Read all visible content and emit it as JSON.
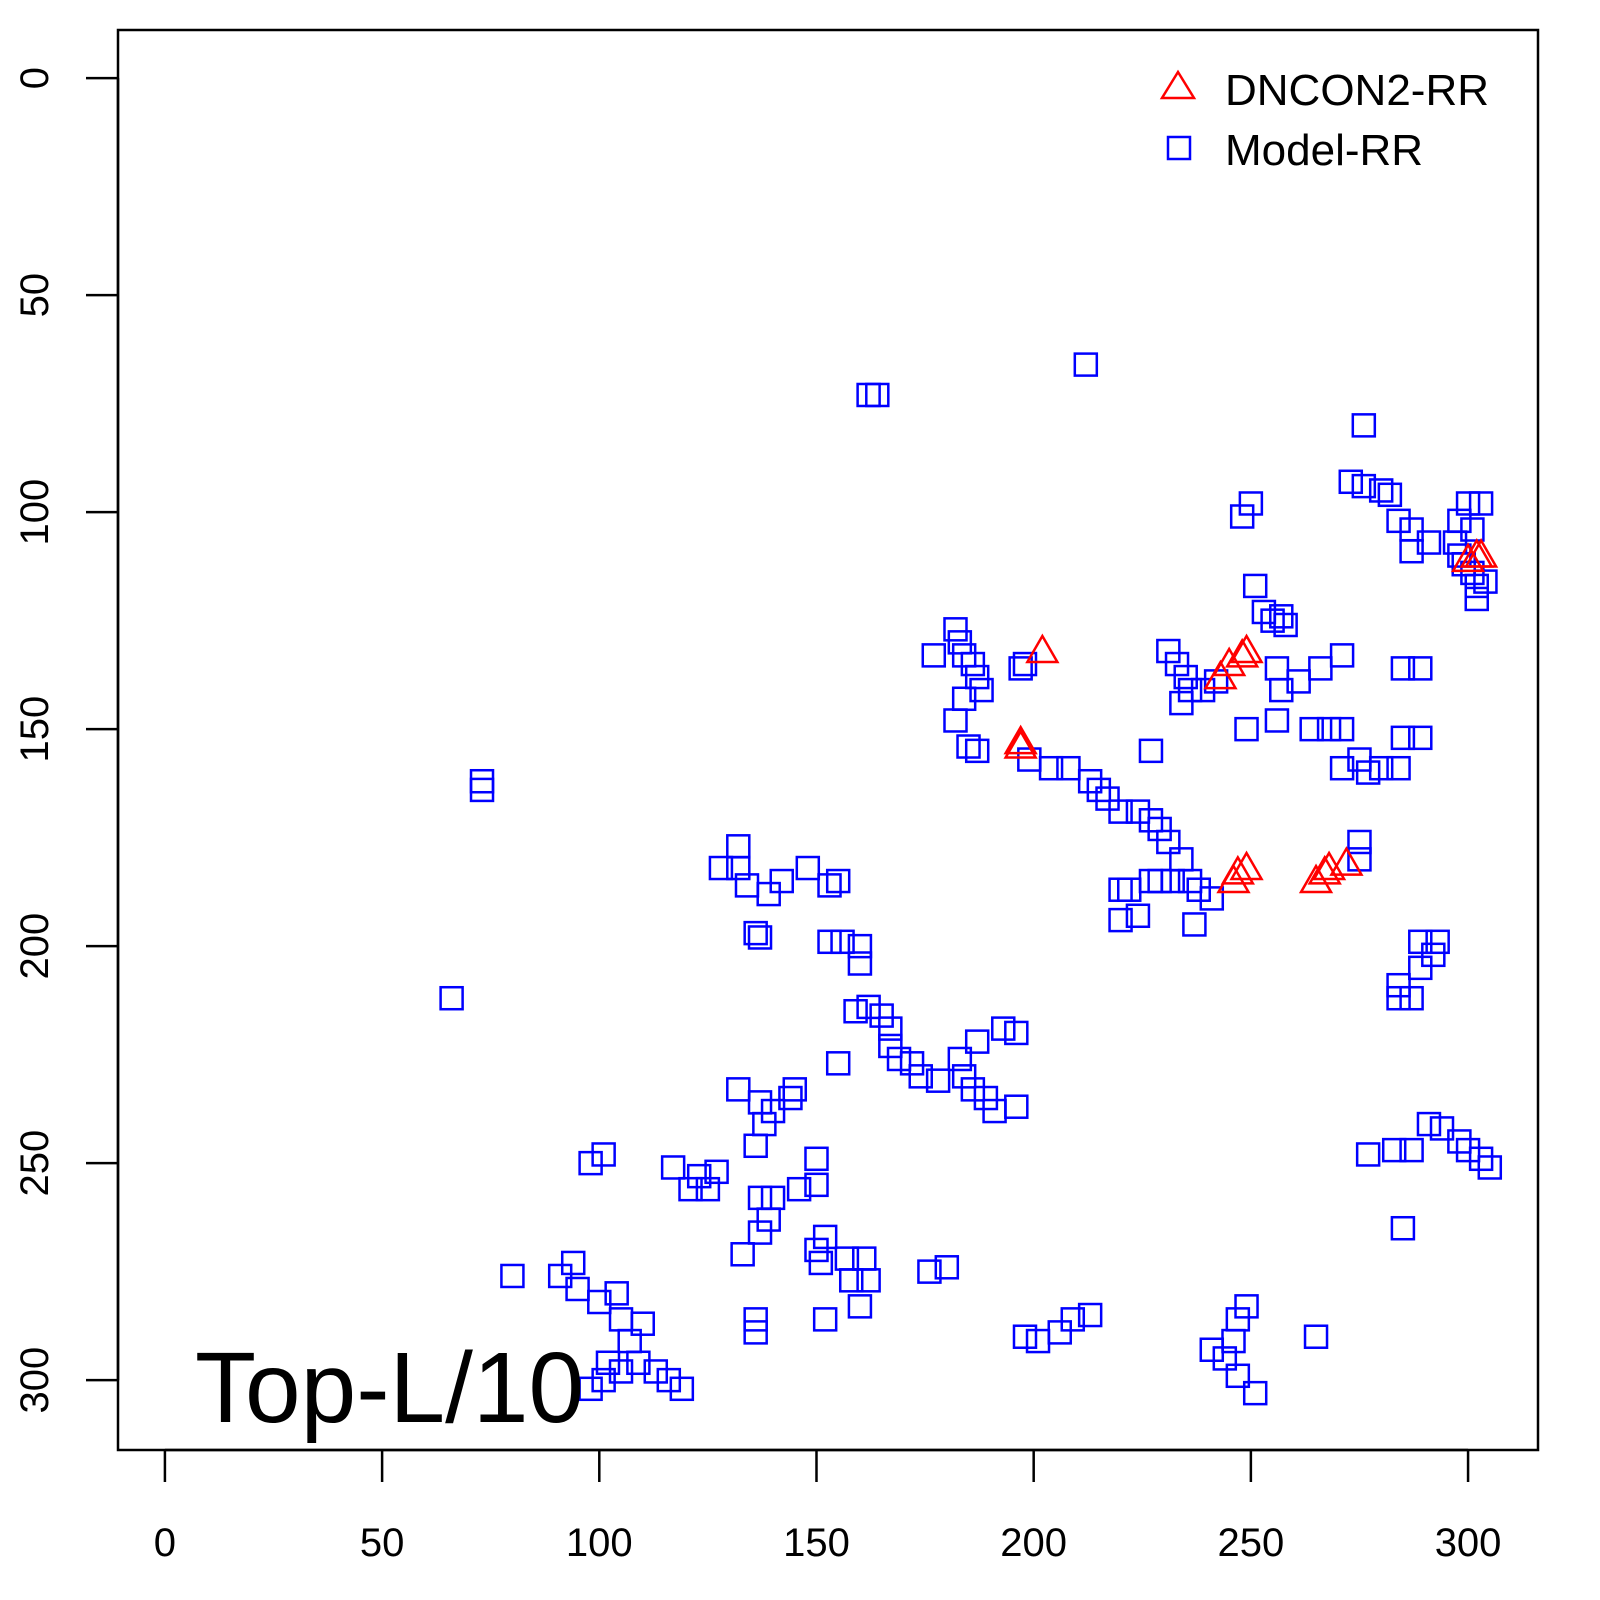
{
  "chart_data": {
    "type": "scatter",
    "title": "",
    "xlabel": "",
    "ylabel": "",
    "xlim": [
      -10.8,
      316.1
    ],
    "ylim": [
      316.1,
      -11.1
    ],
    "y_reversed": true,
    "grid": false,
    "legend_placement": "top-right",
    "annotation": "Top-L/10",
    "x_ticks": [
      0,
      50,
      100,
      150,
      200,
      250,
      300
    ],
    "y_ticks": [
      0,
      50,
      100,
      150,
      200,
      250,
      300
    ],
    "series": [
      {
        "name": "DNCON2-RR",
        "marker": "triangle-open",
        "color": "#ff0000",
        "points": [
          [
            202,
            132
          ],
          [
            197,
            153
          ],
          [
            197,
            154
          ],
          [
            243,
            138
          ],
          [
            245,
            135
          ],
          [
            248,
            133
          ],
          [
            249,
            132
          ],
          [
            246,
            185
          ],
          [
            247,
            183
          ],
          [
            249,
            182
          ],
          [
            265,
            185
          ],
          [
            267,
            183
          ],
          [
            268,
            182
          ],
          [
            272,
            181
          ],
          [
            302,
            110
          ],
          [
            303,
            110
          ],
          [
            300,
            111
          ]
        ]
      },
      {
        "name": "Model-RR",
        "marker": "square-open",
        "color": "#0000ff",
        "points": [
          [
            162,
            73
          ],
          [
            164,
            73
          ],
          [
            212,
            66
          ],
          [
            73,
            162
          ],
          [
            73,
            164
          ],
          [
            66,
            212
          ],
          [
            276,
            80
          ],
          [
            273,
            93
          ],
          [
            276,
            94
          ],
          [
            280,
            95
          ],
          [
            282,
            96
          ],
          [
            284,
            102
          ],
          [
            287,
            104
          ],
          [
            287,
            109
          ],
          [
            291,
            107
          ],
          [
            250,
            98
          ],
          [
            248,
            101
          ],
          [
            300,
            98
          ],
          [
            303,
            98
          ],
          [
            298,
            102
          ],
          [
            297,
            107
          ],
          [
            298,
            110
          ],
          [
            299,
            112
          ],
          [
            301,
            114
          ],
          [
            302,
            117
          ],
          [
            302,
            120
          ],
          [
            304,
            116
          ],
          [
            301,
            104
          ],
          [
            251,
            117
          ],
          [
            253,
            123
          ],
          [
            255,
            125
          ],
          [
            257,
            124
          ],
          [
            258,
            126
          ],
          [
            182,
            127
          ],
          [
            183,
            130
          ],
          [
            184,
            133
          ],
          [
            186,
            135
          ],
          [
            187,
            138
          ],
          [
            188,
            141
          ],
          [
            177,
            133
          ],
          [
            182,
            148
          ],
          [
            184,
            143
          ],
          [
            185,
            154
          ],
          [
            187,
            155
          ],
          [
            198,
            135
          ],
          [
            197,
            136
          ],
          [
            227,
            155
          ],
          [
            231,
            132
          ],
          [
            233,
            135
          ],
          [
            235,
            138
          ],
          [
            236,
            141
          ],
          [
            234,
            144
          ],
          [
            239,
            141
          ],
          [
            242,
            139
          ],
          [
            249,
            150
          ],
          [
            256,
            136
          ],
          [
            257,
            141
          ],
          [
            261,
            139
          ],
          [
            266,
            136
          ],
          [
            271,
            133
          ],
          [
            256,
            148
          ],
          [
            264,
            150
          ],
          [
            268,
            150
          ],
          [
            271,
            150
          ],
          [
            271,
            159
          ],
          [
            275,
            157
          ],
          [
            277,
            160
          ],
          [
            280,
            159
          ],
          [
            284,
            159
          ],
          [
            285,
            152
          ],
          [
            289,
            152
          ],
          [
            285,
            136
          ],
          [
            289,
            136
          ],
          [
            199,
            157
          ],
          [
            204,
            159
          ],
          [
            208,
            159
          ],
          [
            213,
            162
          ],
          [
            215,
            164
          ],
          [
            217,
            166
          ],
          [
            220,
            169
          ],
          [
            224,
            169
          ],
          [
            227,
            171
          ],
          [
            229,
            173
          ],
          [
            231,
            176
          ],
          [
            234,
            180
          ],
          [
            236,
            185
          ],
          [
            238,
            187
          ],
          [
            241,
            189
          ],
          [
            237,
            195
          ],
          [
            275,
            176
          ],
          [
            275,
            180
          ],
          [
            220,
            187
          ],
          [
            222,
            187
          ],
          [
            220,
            194
          ],
          [
            224,
            193
          ],
          [
            227,
            185
          ],
          [
            229,
            185
          ],
          [
            232,
            185
          ],
          [
            128,
            182
          ],
          [
            132,
            177
          ],
          [
            132,
            182
          ],
          [
            134,
            186
          ],
          [
            139,
            188
          ],
          [
            142,
            185
          ],
          [
            148,
            182
          ],
          [
            153,
            186
          ],
          [
            155,
            185
          ],
          [
            136,
            197
          ],
          [
            137,
            198
          ],
          [
            153,
            199
          ],
          [
            156,
            199
          ],
          [
            160,
            200
          ],
          [
            160,
            204
          ],
          [
            159,
            215
          ],
          [
            162,
            214
          ],
          [
            165,
            216
          ],
          [
            167,
            219
          ],
          [
            167,
            223
          ],
          [
            169,
            226
          ],
          [
            172,
            227
          ],
          [
            174,
            230
          ],
          [
            178,
            231
          ],
          [
            183,
            226
          ],
          [
            184,
            230
          ],
          [
            186,
            233
          ],
          [
            189,
            235
          ],
          [
            191,
            238
          ],
          [
            187,
            222
          ],
          [
            193,
            219
          ],
          [
            196,
            220
          ],
          [
            196,
            237
          ],
          [
            155,
            227
          ],
          [
            132,
            233
          ],
          [
            137,
            236
          ],
          [
            138,
            241
          ],
          [
            140,
            238
          ],
          [
            144,
            235
          ],
          [
            145,
            233
          ],
          [
            136,
            246
          ],
          [
            98,
            250
          ],
          [
            101,
            248
          ],
          [
            117,
            251
          ],
          [
            123,
            253
          ],
          [
            127,
            252
          ],
          [
            121,
            256
          ],
          [
            125,
            256
          ],
          [
            137,
            258
          ],
          [
            139,
            263
          ],
          [
            137,
            266
          ],
          [
            140,
            258
          ],
          [
            146,
            256
          ],
          [
            150,
            255
          ],
          [
            150,
            249
          ],
          [
            133,
            271
          ],
          [
            150,
            270
          ],
          [
            151,
            273
          ],
          [
            152,
            267
          ],
          [
            157,
            272
          ],
          [
            161,
            272
          ],
          [
            158,
            277
          ],
          [
            162,
            277
          ],
          [
            160,
            283
          ],
          [
            152,
            286
          ],
          [
            136,
            286
          ],
          [
            136,
            289
          ],
          [
            176,
            275
          ],
          [
            180,
            274
          ],
          [
            80,
            276
          ],
          [
            91,
            276
          ],
          [
            94,
            273
          ],
          [
            95,
            279
          ],
          [
            100,
            282
          ],
          [
            104,
            280
          ],
          [
            105,
            286
          ],
          [
            110,
            287
          ],
          [
            107,
            291
          ],
          [
            102,
            296
          ],
          [
            98,
            302
          ],
          [
            101,
            300
          ],
          [
            105,
            298
          ],
          [
            109,
            296
          ],
          [
            113,
            298
          ],
          [
            116,
            300
          ],
          [
            119,
            302
          ],
          [
            198,
            290
          ],
          [
            201,
            291
          ],
          [
            206,
            289
          ],
          [
            209,
            286
          ],
          [
            213,
            285
          ],
          [
            241,
            293
          ],
          [
            244,
            295
          ],
          [
            246,
            291
          ],
          [
            247,
            286
          ],
          [
            249,
            283
          ],
          [
            247,
            299
          ],
          [
            251,
            303
          ],
          [
            265,
            290
          ],
          [
            284,
            209
          ],
          [
            287,
            212
          ],
          [
            289,
            205
          ],
          [
            289,
            199
          ],
          [
            293,
            199
          ],
          [
            292,
            202
          ],
          [
            284,
            212
          ],
          [
            277,
            248
          ],
          [
            283,
            247
          ],
          [
            287,
            247
          ],
          [
            291,
            241
          ],
          [
            294,
            242
          ],
          [
            298,
            245
          ],
          [
            300,
            247
          ],
          [
            303,
            249
          ],
          [
            305,
            251
          ],
          [
            285,
            265
          ]
        ]
      }
    ]
  }
}
